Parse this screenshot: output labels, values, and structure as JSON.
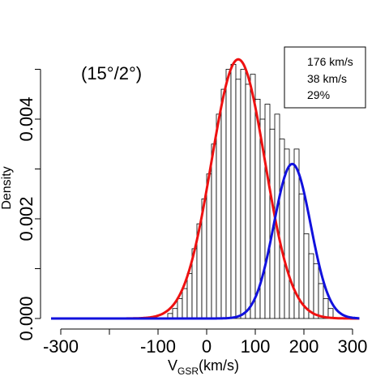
{
  "chart_data": {
    "type": "bar",
    "annotation": "(15°/2°)",
    "xlabel_main": "V",
    "xlabel_sub": "GSR",
    "xlabel_unit": "(km/s)",
    "ylabel": "Density",
    "xlim": [
      -320,
      320
    ],
    "ylim": [
      0,
      0.0053
    ],
    "x_ticks": [
      -300,
      -200,
      -100,
      0,
      100,
      200,
      300
    ],
    "x_tick_labels": [
      "-300",
      "",
      "-100",
      "0",
      "100",
      "200",
      "300"
    ],
    "y_ticks": [
      0,
      0.001,
      0.002,
      0.003,
      0.004,
      0.005
    ],
    "y_tick_labels": [
      "0.000",
      "",
      "0.002",
      "",
      "0.004",
      ""
    ],
    "stats": [
      "176 km/s",
      "38 km/s",
      "29%"
    ],
    "bin_width": 10,
    "bins_start": [
      -90,
      -80,
      -70,
      -60,
      -50,
      -40,
      -30,
      -20,
      -10,
      0,
      10,
      20,
      30,
      40,
      50,
      60,
      70,
      80,
      90,
      100,
      110,
      120,
      130,
      140,
      150,
      160,
      170,
      180,
      190,
      200,
      210,
      220,
      230,
      240,
      250
    ],
    "bin_density": [
      0.0,
      0.0001,
      0.0002,
      0.0004,
      0.0006,
      0.0009,
      0.0014,
      0.0019,
      0.0024,
      0.0029,
      0.0035,
      0.0041,
      0.0046,
      0.005,
      0.0051,
      0.0048,
      0.005,
      0.0047,
      0.0049,
      0.0044,
      0.004,
      0.0043,
      0.0038,
      0.0041,
      0.0036,
      0.0034,
      0.0031,
      0.0034,
      0.0025,
      0.0017,
      0.0013,
      0.0011,
      0.0007,
      0.0004,
      0.0002
    ],
    "series": [
      {
        "component": "red",
        "color": "#ee1111",
        "mean": 65,
        "sigma": 55,
        "amplitude": 0.0052
      },
      {
        "component": "blue",
        "color": "#1111dd",
        "mean": 176,
        "sigma": 38,
        "amplitude": 0.0031
      }
    ],
    "curve_x_range": [
      -320,
      315
    ]
  }
}
